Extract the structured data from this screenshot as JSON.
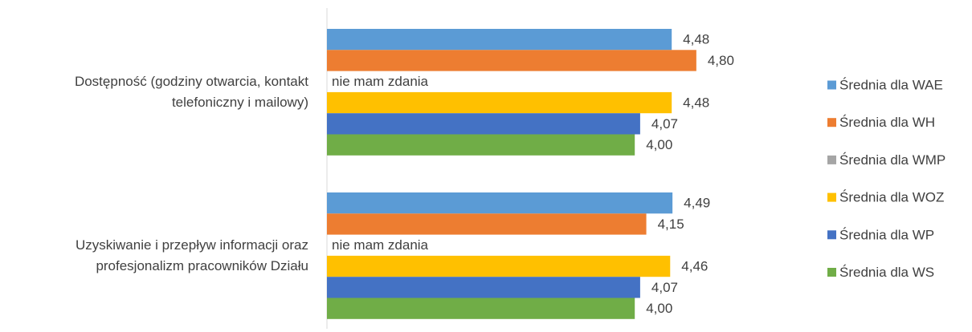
{
  "chart_data": {
    "type": "bar",
    "orientation": "horizontal",
    "categories": [
      "Dostępność (godziny otwarcia, kontakt telefoniczny i mailowy)",
      "Uzyskiwanie i przepływ informacji oraz profesjonalizm pracowników Działu"
    ],
    "series": [
      {
        "name": "Średnia dla WAE",
        "color": "#5b9bd5",
        "values": [
          4.48,
          4.49
        ],
        "value_labels": [
          "4,48",
          "4,49"
        ]
      },
      {
        "name": "Średnia dla WH",
        "color": "#ed7d31",
        "values": [
          4.8,
          4.15
        ],
        "value_labels": [
          "4,80",
          "4,15"
        ]
      },
      {
        "name": "Średnia dla WMP",
        "color": "#a5a5a5",
        "values": [
          null,
          null
        ],
        "value_labels": [
          "nie mam zdania",
          "nie mam zdania"
        ]
      },
      {
        "name": "Średnia dla WOZ",
        "color": "#ffc000",
        "values": [
          4.48,
          4.46
        ],
        "value_labels": [
          "4,48",
          "4,46"
        ]
      },
      {
        "name": "Średnia dla WP",
        "color": "#4472c4",
        "values": [
          4.07,
          4.07
        ],
        "value_labels": [
          "4,07",
          "4,07"
        ]
      },
      {
        "name": "Średnia dla WS",
        "color": "#70ad47",
        "values": [
          4.0,
          4.0
        ],
        "value_labels": [
          "4,00",
          "4,00"
        ]
      }
    ],
    "xlim": [
      0,
      5
    ],
    "legend": "right"
  }
}
